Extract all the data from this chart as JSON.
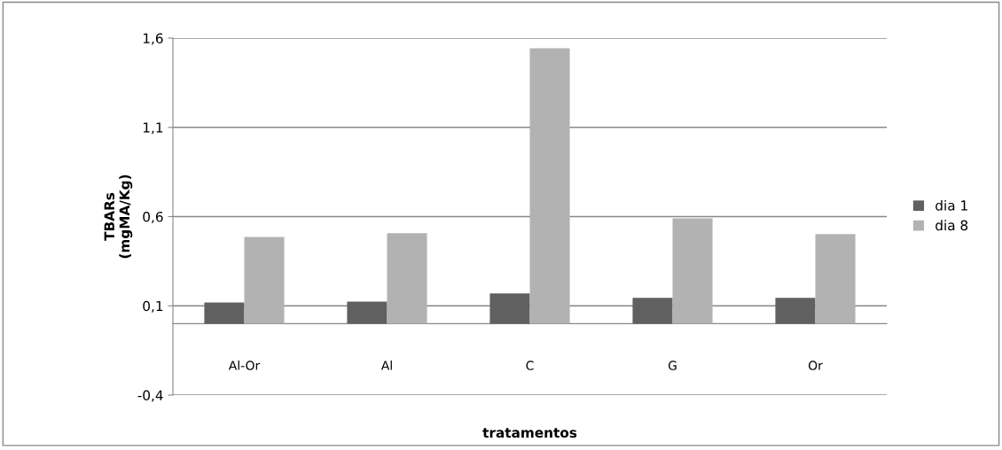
{
  "chart_data": {
    "type": "bar",
    "xlabel": "tratamentos",
    "ylabel": "TBARs\n(mgMA/Kg)",
    "categories": [
      "Al-Or",
      "Al",
      "C",
      "G",
      "Or"
    ],
    "series": [
      {
        "name": "dia 1",
        "color": "#606060",
        "values": [
          0.118,
          0.123,
          0.17,
          0.145,
          0.145
        ]
      },
      {
        "name": "dia 8",
        "color": "#b2b2b2",
        "values": [
          0.486,
          0.507,
          1.543,
          0.59,
          0.502
        ]
      }
    ],
    "ylim": [
      -0.4,
      1.6
    ],
    "yticks": [
      {
        "value": -0.4,
        "label": "-0,4"
      },
      {
        "value": 0.1,
        "label": "0,1"
      },
      {
        "value": 0.6,
        "label": "0,6"
      },
      {
        "value": 1.1,
        "label": "1,1"
      },
      {
        "value": 1.6,
        "label": "1,6"
      }
    ],
    "grid": "y",
    "legend": "right"
  }
}
